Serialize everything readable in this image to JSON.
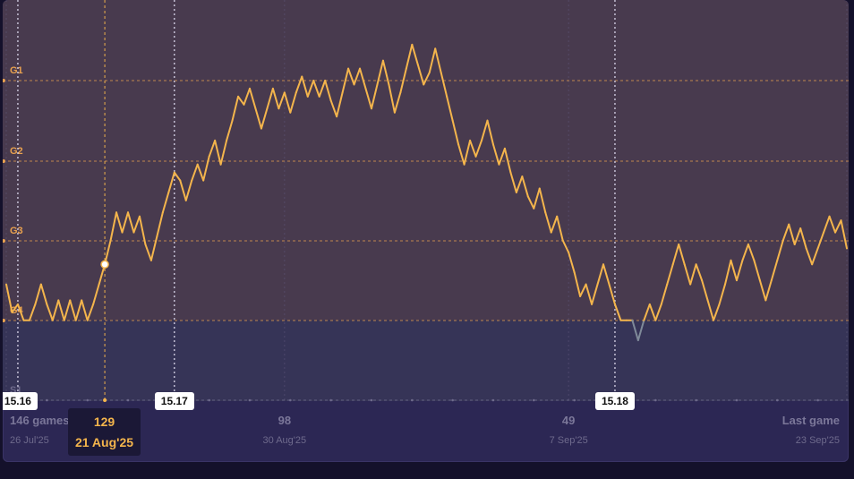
{
  "colors": {
    "line": "#f4b54c",
    "below_line": "#7f8a99",
    "tier_label": "#e8a14e",
    "upper_band": "#483a4e",
    "lower_band": "#363457",
    "panel": "#2c2754"
  },
  "chart_data": {
    "type": "line",
    "y_tiers": [
      "G1",
      "G2",
      "G3",
      "G4",
      "S1"
    ],
    "ylim": [
      0,
      4.5
    ],
    "xlim": [
      146,
      1
    ],
    "x_reverse": true,
    "grid": true,
    "series": [
      {
        "values": [
          [
            146,
            1.45
          ],
          [
            145,
            1.1
          ],
          [
            144,
            1.2
          ],
          [
            143,
            1.0
          ],
          [
            142,
            1.0
          ],
          [
            141,
            1.2
          ],
          [
            140,
            1.45
          ],
          [
            139,
            1.2
          ],
          [
            138,
            1.0
          ],
          [
            137,
            1.25
          ],
          [
            136,
            1.0
          ],
          [
            135,
            1.25
          ],
          [
            134,
            1.0
          ],
          [
            133,
            1.25
          ],
          [
            132,
            1.0
          ],
          [
            131,
            1.2
          ],
          [
            130,
            1.45
          ],
          [
            129,
            1.7
          ],
          [
            128,
            2.0
          ],
          [
            127,
            2.35
          ],
          [
            126,
            2.1
          ],
          [
            125,
            2.35
          ],
          [
            124,
            2.1
          ],
          [
            123,
            2.3
          ],
          [
            122,
            1.95
          ],
          [
            121,
            1.75
          ],
          [
            120,
            2.05
          ],
          [
            119,
            2.35
          ],
          [
            118,
            2.6
          ],
          [
            117,
            2.85
          ],
          [
            116,
            2.75
          ],
          [
            115,
            2.5
          ],
          [
            114,
            2.75
          ],
          [
            113,
            2.95
          ],
          [
            112,
            2.75
          ],
          [
            111,
            3.05
          ],
          [
            110,
            3.25
          ],
          [
            109,
            2.95
          ],
          [
            108,
            3.25
          ],
          [
            107,
            3.5
          ],
          [
            106,
            3.8
          ],
          [
            105,
            3.7
          ],
          [
            104,
            3.9
          ],
          [
            103,
            3.65
          ],
          [
            102,
            3.4
          ],
          [
            101,
            3.65
          ],
          [
            100,
            3.9
          ],
          [
            99,
            3.65
          ],
          [
            98,
            3.85
          ],
          [
            97,
            3.6
          ],
          [
            96,
            3.85
          ],
          [
            95,
            4.05
          ],
          [
            94,
            3.8
          ],
          [
            93,
            4.0
          ],
          [
            92,
            3.8
          ],
          [
            91,
            4.0
          ],
          [
            90,
            3.75
          ],
          [
            89,
            3.55
          ],
          [
            88,
            3.85
          ],
          [
            87,
            4.15
          ],
          [
            86,
            3.95
          ],
          [
            85,
            4.15
          ],
          [
            84,
            3.9
          ],
          [
            83,
            3.65
          ],
          [
            82,
            3.95
          ],
          [
            81,
            4.25
          ],
          [
            80,
            3.95
          ],
          [
            79,
            3.6
          ],
          [
            78,
            3.85
          ],
          [
            77,
            4.15
          ],
          [
            76,
            4.45
          ],
          [
            75,
            4.2
          ],
          [
            74,
            3.95
          ],
          [
            73,
            4.1
          ],
          [
            72,
            4.4
          ],
          [
            71,
            4.1
          ],
          [
            70,
            3.8
          ],
          [
            69,
            3.5
          ],
          [
            68,
            3.2
          ],
          [
            67,
            2.95
          ],
          [
            66,
            3.25
          ],
          [
            65,
            3.05
          ],
          [
            64,
            3.25
          ],
          [
            63,
            3.5
          ],
          [
            62,
            3.2
          ],
          [
            61,
            2.95
          ],
          [
            60,
            3.15
          ],
          [
            59,
            2.85
          ],
          [
            58,
            2.6
          ],
          [
            57,
            2.8
          ],
          [
            56,
            2.55
          ],
          [
            55,
            2.4
          ],
          [
            54,
            2.65
          ],
          [
            53,
            2.35
          ],
          [
            52,
            2.1
          ],
          [
            51,
            2.3
          ],
          [
            50,
            2.0
          ],
          [
            49,
            1.85
          ],
          [
            48,
            1.6
          ],
          [
            47,
            1.3
          ],
          [
            46,
            1.45
          ],
          [
            45,
            1.2
          ],
          [
            44,
            1.45
          ],
          [
            43,
            1.7
          ],
          [
            42,
            1.45
          ],
          [
            41,
            1.2
          ],
          [
            40,
            1.0
          ],
          [
            39,
            1.0
          ],
          [
            38,
            1.0
          ],
          [
            37,
            0.75
          ],
          [
            36,
            1.0
          ],
          [
            35,
            1.2
          ],
          [
            34,
            1.0
          ],
          [
            33,
            1.2
          ],
          [
            32,
            1.45
          ],
          [
            31,
            1.7
          ],
          [
            30,
            1.95
          ],
          [
            29,
            1.7
          ],
          [
            28,
            1.45
          ],
          [
            27,
            1.7
          ],
          [
            26,
            1.5
          ],
          [
            25,
            1.25
          ],
          [
            24,
            1.0
          ],
          [
            23,
            1.2
          ],
          [
            22,
            1.45
          ],
          [
            21,
            1.75
          ],
          [
            20,
            1.5
          ],
          [
            19,
            1.75
          ],
          [
            18,
            1.95
          ],
          [
            17,
            1.75
          ],
          [
            16,
            1.5
          ],
          [
            15,
            1.25
          ],
          [
            14,
            1.5
          ],
          [
            13,
            1.75
          ],
          [
            12,
            2.0
          ],
          [
            11,
            2.2
          ],
          [
            10,
            1.95
          ],
          [
            9,
            2.15
          ],
          [
            8,
            1.9
          ],
          [
            7,
            1.7
          ],
          [
            6,
            1.9
          ],
          [
            5,
            2.1
          ],
          [
            4,
            2.3
          ],
          [
            3,
            2.1
          ],
          [
            2,
            2.25
          ],
          [
            1,
            1.9
          ]
        ]
      }
    ],
    "patches": [
      {
        "label": "15.16",
        "game": 144
      },
      {
        "label": "15.17",
        "game": 117
      },
      {
        "label": "15.18",
        "game": 41
      }
    ],
    "x_ticks": [
      {
        "label": "146 games ago",
        "date": "26 Jul'25",
        "game": 146,
        "align": "left"
      },
      {
        "label": "98",
        "date": "30 Aug'25",
        "game": 98,
        "align": "center"
      },
      {
        "label": "49",
        "date": "7 Sep'25",
        "game": 49,
        "align": "center"
      },
      {
        "label": "Last game",
        "date": "23 Sep'25",
        "game": 1,
        "align": "right"
      }
    ],
    "hover": {
      "game_label": "129",
      "date": "21 Aug'25",
      "game": 129
    }
  }
}
